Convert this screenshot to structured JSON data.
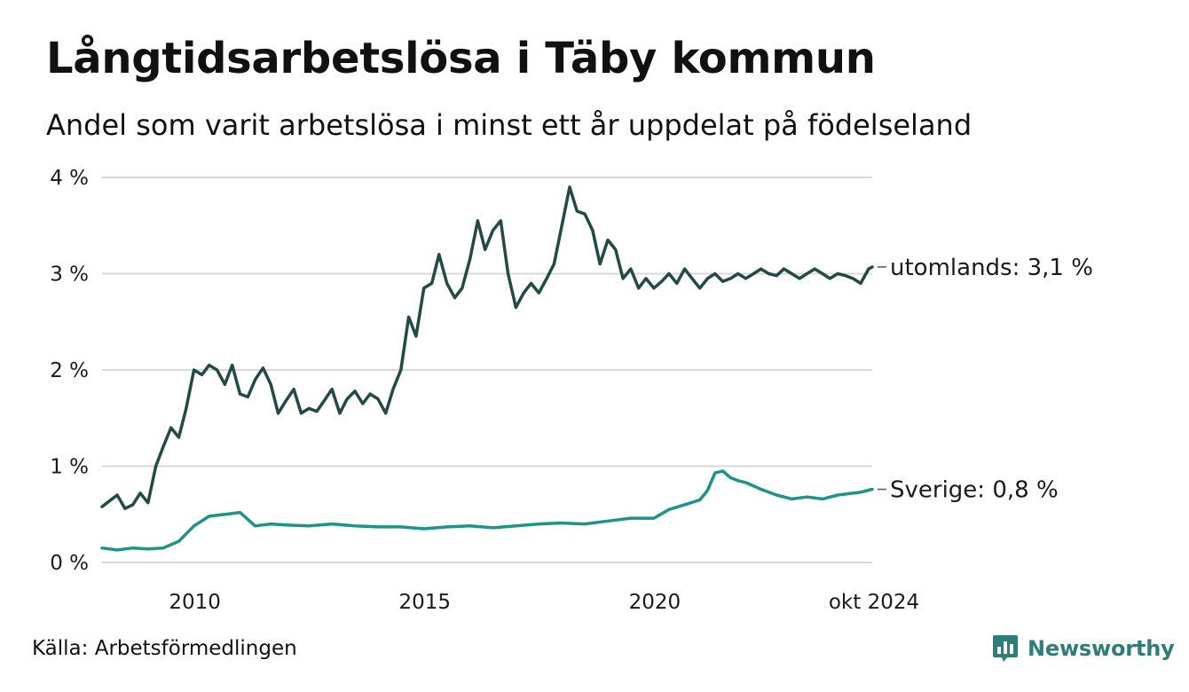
{
  "header": {
    "title": "Långtidsarbetslösa i Täby kommun",
    "subtitle": "Andel som varit arbetslösa i minst ett år uppdelat på födelseland"
  },
  "footer": {
    "source": "Källa: Arbetsförmedlingen",
    "brand": "Newsworthy"
  },
  "colors": {
    "utomlands": "#234a45",
    "sverige": "#1e9488",
    "grid": "#d9d9d9",
    "brand": "#2f7d78"
  },
  "icons": {
    "brand_logo": "bar-chart-speech-bubble-icon"
  },
  "chart_data": {
    "type": "line",
    "title": "Långtidsarbetslösa i Täby kommun",
    "subtitle": "Andel som varit arbetslösa i minst ett år uppdelat på födelseland",
    "ylim": [
      0,
      4
    ],
    "y_ticks": [
      0,
      1,
      2,
      3,
      4
    ],
    "y_tick_labels": [
      "0 %",
      "1 %",
      "2 %",
      "3 %",
      "4 %"
    ],
    "x_start": 2008.0,
    "x_end": 2024.75,
    "x_ticks": [
      2010,
      2015,
      2020,
      2024.75
    ],
    "x_tick_labels": [
      "2010",
      "2015",
      "2020",
      "okt 2024"
    ],
    "grid": true,
    "series": [
      {
        "name": "utomlands",
        "end_label": "utomlands: 3,1 %",
        "x": [
          2008.0,
          2008.33,
          2008.5,
          2008.67,
          2008.83,
          2009.0,
          2009.17,
          2009.33,
          2009.5,
          2009.67,
          2009.83,
          2010.0,
          2010.17,
          2010.33,
          2010.5,
          2010.67,
          2010.83,
          2011.0,
          2011.17,
          2011.33,
          2011.5,
          2011.67,
          2011.83,
          2012.0,
          2012.17,
          2012.33,
          2012.5,
          2012.67,
          2012.83,
          2013.0,
          2013.17,
          2013.33,
          2013.5,
          2013.67,
          2013.83,
          2014.0,
          2014.17,
          2014.33,
          2014.5,
          2014.67,
          2014.83,
          2015.0,
          2015.17,
          2015.33,
          2015.5,
          2015.67,
          2015.83,
          2016.0,
          2016.17,
          2016.33,
          2016.5,
          2016.67,
          2016.83,
          2017.0,
          2017.17,
          2017.33,
          2017.5,
          2017.67,
          2017.83,
          2018.0,
          2018.17,
          2018.33,
          2018.5,
          2018.67,
          2018.83,
          2019.0,
          2019.17,
          2019.33,
          2019.5,
          2019.67,
          2019.83,
          2020.0,
          2020.17,
          2020.33,
          2020.5,
          2020.67,
          2020.83,
          2021.0,
          2021.17,
          2021.33,
          2021.5,
          2021.67,
          2021.83,
          2022.0,
          2022.17,
          2022.33,
          2022.5,
          2022.67,
          2022.83,
          2023.0,
          2023.17,
          2023.33,
          2023.5,
          2023.67,
          2023.83,
          2024.0,
          2024.17,
          2024.33,
          2024.5,
          2024.67,
          2024.75
        ],
        "values": [
          0.58,
          0.7,
          0.56,
          0.6,
          0.72,
          0.62,
          1.0,
          1.2,
          1.4,
          1.3,
          1.6,
          2.0,
          1.95,
          2.05,
          2.0,
          1.85,
          2.05,
          1.75,
          1.72,
          1.9,
          2.02,
          1.85,
          1.55,
          1.68,
          1.8,
          1.55,
          1.6,
          1.57,
          1.68,
          1.8,
          1.55,
          1.7,
          1.78,
          1.65,
          1.75,
          1.7,
          1.55,
          1.8,
          2.0,
          2.55,
          2.35,
          2.85,
          2.9,
          3.2,
          2.9,
          2.75,
          2.85,
          3.15,
          3.55,
          3.25,
          3.45,
          3.55,
          3.0,
          2.65,
          2.8,
          2.9,
          2.8,
          2.95,
          3.1,
          3.5,
          3.9,
          3.65,
          3.62,
          3.45,
          3.1,
          3.35,
          3.25,
          2.95,
          3.05,
          2.85,
          2.95,
          2.85,
          2.92,
          3.0,
          2.9,
          3.05,
          2.95,
          2.85,
          2.95,
          3.0,
          2.92,
          2.95,
          3.0,
          2.95,
          3.0,
          3.05,
          3.0,
          2.98,
          3.05,
          3.0,
          2.95,
          3.0,
          3.05,
          3.0,
          2.95,
          3.0,
          2.98,
          2.95,
          2.9,
          3.05,
          3.07
        ]
      },
      {
        "name": "Sverige",
        "end_label": "Sverige: 0,8 %",
        "x": [
          2008.0,
          2008.33,
          2008.67,
          2009.0,
          2009.33,
          2009.67,
          2010.0,
          2010.33,
          2010.67,
          2011.0,
          2011.33,
          2011.67,
          2012.0,
          2012.5,
          2013.0,
          2013.5,
          2014.0,
          2014.5,
          2015.0,
          2015.5,
          2016.0,
          2016.5,
          2017.0,
          2017.5,
          2018.0,
          2018.5,
          2019.0,
          2019.5,
          2020.0,
          2020.33,
          2020.67,
          2021.0,
          2021.17,
          2021.33,
          2021.5,
          2021.67,
          2021.83,
          2022.0,
          2022.33,
          2022.67,
          2023.0,
          2023.33,
          2023.67,
          2024.0,
          2024.33,
          2024.5,
          2024.75
        ],
        "values": [
          0.15,
          0.13,
          0.15,
          0.14,
          0.15,
          0.22,
          0.38,
          0.48,
          0.5,
          0.52,
          0.38,
          0.4,
          0.39,
          0.38,
          0.4,
          0.38,
          0.37,
          0.37,
          0.35,
          0.37,
          0.38,
          0.36,
          0.38,
          0.4,
          0.41,
          0.4,
          0.43,
          0.46,
          0.46,
          0.55,
          0.6,
          0.65,
          0.75,
          0.93,
          0.95,
          0.88,
          0.85,
          0.83,
          0.76,
          0.7,
          0.66,
          0.68,
          0.66,
          0.7,
          0.72,
          0.73,
          0.76
        ]
      }
    ]
  }
}
